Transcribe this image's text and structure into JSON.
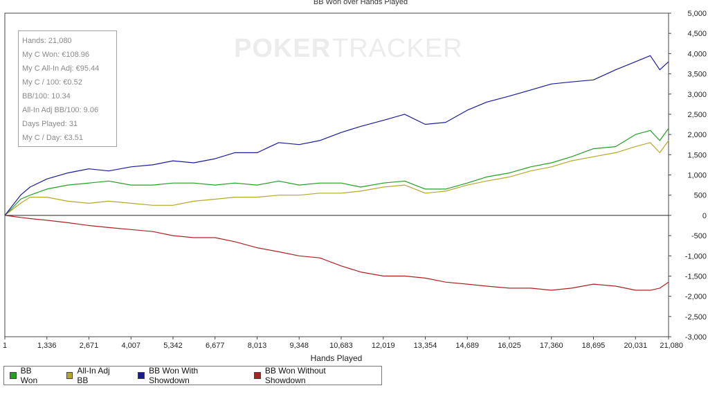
{
  "watermark": {
    "brand_bold": "POKER",
    "brand_light": "TRACKER"
  },
  "stats": [
    "Hands: 21,080",
    "My C Won: €108.96",
    "My C All-In Adj: €95.44",
    "My C / 100: €0.52",
    "BB/100: 10.34",
    "All-In Adj BB/100: 9.06",
    "Days Played: 31",
    "My C / Day: €3.51"
  ],
  "colors": {
    "bb_won": "#22a022",
    "allin_adj": "#b5a828",
    "with_showdown": "#1a1aa0",
    "without_showdown": "#b02020"
  },
  "chart_data": {
    "type": "line",
    "title": "BB Won over Hands Played",
    "xlabel": "Hands Played",
    "ylabel": "",
    "x_ticks": [
      "1",
      "1,336",
      "2,671",
      "4,007",
      "5,342",
      "6,677",
      "8,013",
      "9,348",
      "10,683",
      "12,019",
      "13,354",
      "14,689",
      "16,025",
      "17,360",
      "18,695",
      "20,031",
      "21,080"
    ],
    "y_ticks": [
      "5,000",
      "4,500",
      "4,000",
      "3,500",
      "3,000",
      "2,500",
      "2,000",
      "1,500",
      "1,000",
      "500",
      "0",
      "-500",
      "-1,000",
      "-1,500",
      "-2,000",
      "-2,500",
      "-3,000"
    ],
    "xlim": [
      1,
      21080
    ],
    "ylim": [
      -3000,
      5000
    ],
    "legend_position": "bottom-left",
    "x": [
      1,
      200,
      500,
      800,
      1336,
      2000,
      2671,
      3300,
      4007,
      4700,
      5342,
      6000,
      6677,
      7300,
      8013,
      8700,
      9348,
      10000,
      10683,
      11300,
      12019,
      12700,
      13354,
      14000,
      14689,
      15300,
      16025,
      16700,
      17360,
      18000,
      18695,
      19400,
      20031,
      20500,
      20800,
      21080
    ],
    "series": [
      {
        "name": "BB Won",
        "color_key": "bb_won",
        "values": [
          0,
          150,
          400,
          500,
          650,
          750,
          800,
          850,
          750,
          750,
          800,
          800,
          750,
          800,
          750,
          850,
          750,
          800,
          800,
          700,
          800,
          850,
          650,
          650,
          800,
          950,
          1050,
          1200,
          1300,
          1450,
          1650,
          1700,
          2000,
          2100,
          1850,
          2150
        ]
      },
      {
        "name": "All-In Adj BB",
        "color_key": "allin_adj",
        "values": [
          0,
          120,
          300,
          450,
          450,
          350,
          300,
          350,
          300,
          250,
          250,
          350,
          400,
          450,
          450,
          500,
          500,
          550,
          550,
          600,
          700,
          750,
          550,
          600,
          750,
          850,
          950,
          1100,
          1200,
          1350,
          1450,
          1550,
          1700,
          1800,
          1550,
          1850
        ]
      },
      {
        "name": "BB Won With Showdown",
        "color_key": "with_showdown",
        "values": [
          0,
          200,
          500,
          700,
          900,
          1050,
          1150,
          1100,
          1200,
          1250,
          1350,
          1300,
          1400,
          1550,
          1550,
          1800,
          1750,
          1850,
          2050,
          2200,
          2350,
          2500,
          2250,
          2300,
          2600,
          2800,
          2950,
          3100,
          3250,
          3300,
          3350,
          3600,
          3800,
          3950,
          3600,
          3800
        ]
      },
      {
        "name": "BB Won Without Showdown",
        "color_key": "without_showdown",
        "values": [
          0,
          -20,
          -50,
          -80,
          -120,
          -180,
          -250,
          -300,
          -350,
          -400,
          -500,
          -550,
          -550,
          -650,
          -800,
          -900,
          -1000,
          -1050,
          -1250,
          -1400,
          -1500,
          -1500,
          -1550,
          -1650,
          -1700,
          -1750,
          -1800,
          -1800,
          -1850,
          -1800,
          -1700,
          -1750,
          -1850,
          -1850,
          -1800,
          -1650
        ]
      }
    ]
  }
}
